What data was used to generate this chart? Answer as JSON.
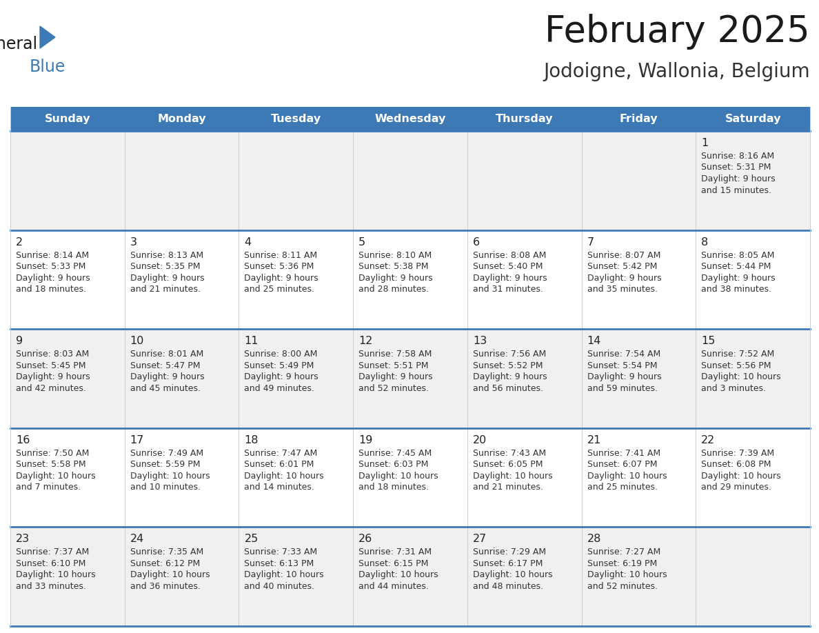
{
  "title": "February 2025",
  "subtitle": "Jodoigne, Wallonia, Belgium",
  "header_bg": "#3d7ab5",
  "header_text_color": "#ffffff",
  "day_names": [
    "Sunday",
    "Monday",
    "Tuesday",
    "Wednesday",
    "Thursday",
    "Friday",
    "Saturday"
  ],
  "row_bg_0": "#f0f0f0",
  "row_bg_1": "#ffffff",
  "row_bg_2": "#f0f0f0",
  "row_bg_3": "#ffffff",
  "row_bg_4": "#f0f0f0",
  "cell_border_color": "#3d7ab5",
  "title_color": "#1a1a1a",
  "subtitle_color": "#333333",
  "day_num_color": "#222222",
  "text_color": "#333333",
  "logo_general_color": "#1a1a1a",
  "logo_blue_color": "#3d7ab5",
  "logo_triangle_color": "#3d7ab5",
  "calendar": [
    [
      null,
      null,
      null,
      null,
      null,
      null,
      {
        "day": 1,
        "sunrise": "Sunrise: 8:16 AM",
        "sunset": "Sunset: 5:31 PM",
        "daylight": "Daylight: 9 hours",
        "daylight2": "and 15 minutes."
      }
    ],
    [
      {
        "day": 2,
        "sunrise": "Sunrise: 8:14 AM",
        "sunset": "Sunset: 5:33 PM",
        "daylight": "Daylight: 9 hours",
        "daylight2": "and 18 minutes."
      },
      {
        "day": 3,
        "sunrise": "Sunrise: 8:13 AM",
        "sunset": "Sunset: 5:35 PM",
        "daylight": "Daylight: 9 hours",
        "daylight2": "and 21 minutes."
      },
      {
        "day": 4,
        "sunrise": "Sunrise: 8:11 AM",
        "sunset": "Sunset: 5:36 PM",
        "daylight": "Daylight: 9 hours",
        "daylight2": "and 25 minutes."
      },
      {
        "day": 5,
        "sunrise": "Sunrise: 8:10 AM",
        "sunset": "Sunset: 5:38 PM",
        "daylight": "Daylight: 9 hours",
        "daylight2": "and 28 minutes."
      },
      {
        "day": 6,
        "sunrise": "Sunrise: 8:08 AM",
        "sunset": "Sunset: 5:40 PM",
        "daylight": "Daylight: 9 hours",
        "daylight2": "and 31 minutes."
      },
      {
        "day": 7,
        "sunrise": "Sunrise: 8:07 AM",
        "sunset": "Sunset: 5:42 PM",
        "daylight": "Daylight: 9 hours",
        "daylight2": "and 35 minutes."
      },
      {
        "day": 8,
        "sunrise": "Sunrise: 8:05 AM",
        "sunset": "Sunset: 5:44 PM",
        "daylight": "Daylight: 9 hours",
        "daylight2": "and 38 minutes."
      }
    ],
    [
      {
        "day": 9,
        "sunrise": "Sunrise: 8:03 AM",
        "sunset": "Sunset: 5:45 PM",
        "daylight": "Daylight: 9 hours",
        "daylight2": "and 42 minutes."
      },
      {
        "day": 10,
        "sunrise": "Sunrise: 8:01 AM",
        "sunset": "Sunset: 5:47 PM",
        "daylight": "Daylight: 9 hours",
        "daylight2": "and 45 minutes."
      },
      {
        "day": 11,
        "sunrise": "Sunrise: 8:00 AM",
        "sunset": "Sunset: 5:49 PM",
        "daylight": "Daylight: 9 hours",
        "daylight2": "and 49 minutes."
      },
      {
        "day": 12,
        "sunrise": "Sunrise: 7:58 AM",
        "sunset": "Sunset: 5:51 PM",
        "daylight": "Daylight: 9 hours",
        "daylight2": "and 52 minutes."
      },
      {
        "day": 13,
        "sunrise": "Sunrise: 7:56 AM",
        "sunset": "Sunset: 5:52 PM",
        "daylight": "Daylight: 9 hours",
        "daylight2": "and 56 minutes."
      },
      {
        "day": 14,
        "sunrise": "Sunrise: 7:54 AM",
        "sunset": "Sunset: 5:54 PM",
        "daylight": "Daylight: 9 hours",
        "daylight2": "and 59 minutes."
      },
      {
        "day": 15,
        "sunrise": "Sunrise: 7:52 AM",
        "sunset": "Sunset: 5:56 PM",
        "daylight": "Daylight: 10 hours",
        "daylight2": "and 3 minutes."
      }
    ],
    [
      {
        "day": 16,
        "sunrise": "Sunrise: 7:50 AM",
        "sunset": "Sunset: 5:58 PM",
        "daylight": "Daylight: 10 hours",
        "daylight2": "and 7 minutes."
      },
      {
        "day": 17,
        "sunrise": "Sunrise: 7:49 AM",
        "sunset": "Sunset: 5:59 PM",
        "daylight": "Daylight: 10 hours",
        "daylight2": "and 10 minutes."
      },
      {
        "day": 18,
        "sunrise": "Sunrise: 7:47 AM",
        "sunset": "Sunset: 6:01 PM",
        "daylight": "Daylight: 10 hours",
        "daylight2": "and 14 minutes."
      },
      {
        "day": 19,
        "sunrise": "Sunrise: 7:45 AM",
        "sunset": "Sunset: 6:03 PM",
        "daylight": "Daylight: 10 hours",
        "daylight2": "and 18 minutes."
      },
      {
        "day": 20,
        "sunrise": "Sunrise: 7:43 AM",
        "sunset": "Sunset: 6:05 PM",
        "daylight": "Daylight: 10 hours",
        "daylight2": "and 21 minutes."
      },
      {
        "day": 21,
        "sunrise": "Sunrise: 7:41 AM",
        "sunset": "Sunset: 6:07 PM",
        "daylight": "Daylight: 10 hours",
        "daylight2": "and 25 minutes."
      },
      {
        "day": 22,
        "sunrise": "Sunrise: 7:39 AM",
        "sunset": "Sunset: 6:08 PM",
        "daylight": "Daylight: 10 hours",
        "daylight2": "and 29 minutes."
      }
    ],
    [
      {
        "day": 23,
        "sunrise": "Sunrise: 7:37 AM",
        "sunset": "Sunset: 6:10 PM",
        "daylight": "Daylight: 10 hours",
        "daylight2": "and 33 minutes."
      },
      {
        "day": 24,
        "sunrise": "Sunrise: 7:35 AM",
        "sunset": "Sunset: 6:12 PM",
        "daylight": "Daylight: 10 hours",
        "daylight2": "and 36 minutes."
      },
      {
        "day": 25,
        "sunrise": "Sunrise: 7:33 AM",
        "sunset": "Sunset: 6:13 PM",
        "daylight": "Daylight: 10 hours",
        "daylight2": "and 40 minutes."
      },
      {
        "day": 26,
        "sunrise": "Sunrise: 7:31 AM",
        "sunset": "Sunset: 6:15 PM",
        "daylight": "Daylight: 10 hours",
        "daylight2": "and 44 minutes."
      },
      {
        "day": 27,
        "sunrise": "Sunrise: 7:29 AM",
        "sunset": "Sunset: 6:17 PM",
        "daylight": "Daylight: 10 hours",
        "daylight2": "and 48 minutes."
      },
      {
        "day": 28,
        "sunrise": "Sunrise: 7:27 AM",
        "sunset": "Sunset: 6:19 PM",
        "daylight": "Daylight: 10 hours",
        "daylight2": "and 52 minutes."
      },
      null
    ]
  ]
}
